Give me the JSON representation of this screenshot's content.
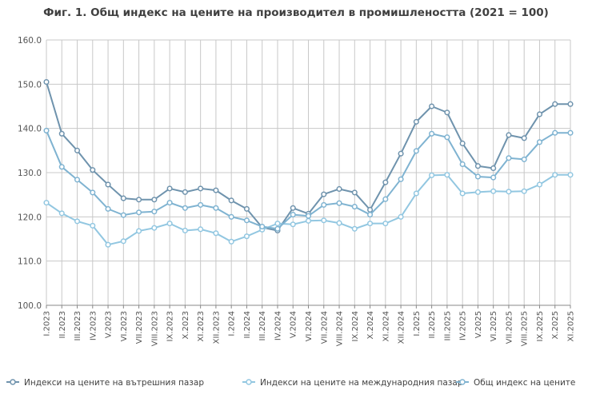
{
  "chart_data": {
    "type": "line",
    "title": "Фиг. 1. Общ индекс на цените на производител в промишлеността (2021 = 100)",
    "ylim": [
      100,
      160
    ],
    "yticks": [
      "100.0",
      "110.0",
      "120.0",
      "130.0",
      "140.0",
      "150.0",
      "160.0"
    ],
    "grid": true,
    "legend_position": "bottom",
    "categories": [
      "I.2023",
      "II.2023",
      "III.2023",
      "IV.2023",
      "V.2023",
      "VI.2023",
      "VII.2023",
      "VIII.2023",
      "IX.2023",
      "X.2023",
      "XI.2023",
      "XII.2023",
      "I.2024",
      "II.2024",
      "III.2024",
      "IV.2024",
      "V.2024",
      "VI.2024",
      "VII.2024",
      "VIII.2024",
      "IX.2024",
      "X.2024",
      "XI.2024",
      "XII.2024",
      "I.2025",
      "II.2025",
      "III.2025",
      "IV.2025",
      "V.2025",
      "VI.2025",
      "VII.2025",
      "VIII.2025",
      "IX.2025",
      "X.2025",
      "XI.2025"
    ],
    "series": [
      {
        "name": "Индекси на цените на вътрешния пазар",
        "color": "#6f93ad",
        "values": [
          150.5,
          138.8,
          135.0,
          130.6,
          127.3,
          124.2,
          123.9,
          123.9,
          126.4,
          125.6,
          126.4,
          126.0,
          123.7,
          121.8,
          117.6,
          116.9,
          122.0,
          120.7,
          125.1,
          126.3,
          125.5,
          121.6,
          127.8,
          134.3,
          141.5,
          145.0,
          143.6,
          136.6,
          131.5,
          131.0,
          138.5,
          137.8,
          143.2,
          145.5,
          145.5
        ]
      },
      {
        "name": "Индекси на цените на международния пазар",
        "color": "#92c7e1",
        "values": [
          123.2,
          120.8,
          119.0,
          118.0,
          113.7,
          114.5,
          116.8,
          117.5,
          118.5,
          116.9,
          117.2,
          116.3,
          114.4,
          115.6,
          117.1,
          118.5,
          118.3,
          119.1,
          119.2,
          118.6,
          117.3,
          118.5,
          118.5,
          120.0,
          125.3,
          129.4,
          129.5,
          125.3,
          125.6,
          125.8,
          125.7,
          125.8,
          127.3,
          129.5,
          129.5
        ]
      },
      {
        "name": "Общ индекс на цените",
        "color": "#7fb3d1",
        "values": [
          139.5,
          131.3,
          128.4,
          125.5,
          121.8,
          120.4,
          121.0,
          121.2,
          123.2,
          122.0,
          122.7,
          122.0,
          120.0,
          119.2,
          117.8,
          117.3,
          120.5,
          120.2,
          122.7,
          123.1,
          122.3,
          120.5,
          124.0,
          128.5,
          134.9,
          138.8,
          138.0,
          131.9,
          129.1,
          128.9,
          133.3,
          133.0,
          136.9,
          139.0,
          139.0
        ]
      }
    ]
  }
}
